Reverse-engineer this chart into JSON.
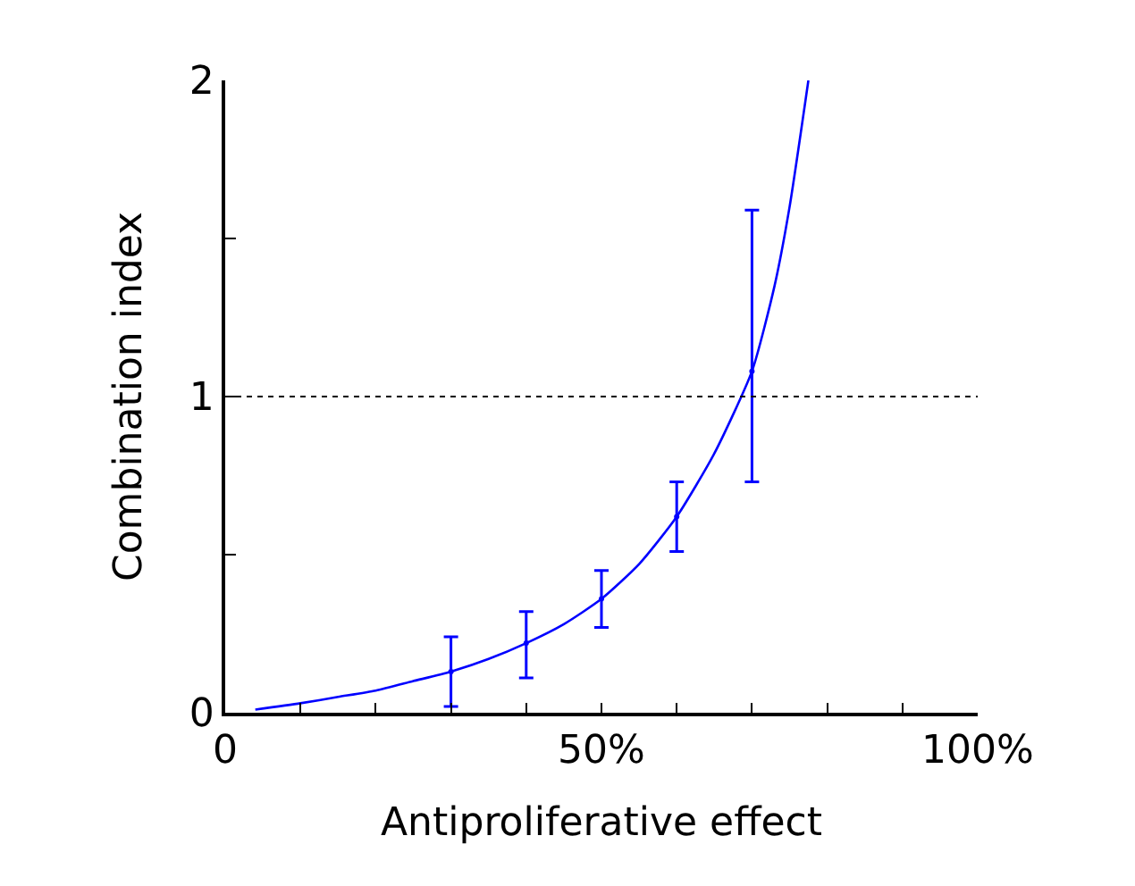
{
  "chart_data": {
    "type": "line",
    "xlabel": "Antiproliferative effect",
    "ylabel": "Combination index",
    "xlim": [
      0,
      100
    ],
    "ylim": [
      0,
      2
    ],
    "xticks": [
      0,
      {
        "value": 10,
        "label": null
      },
      {
        "value": 20,
        "label": null
      },
      {
        "value": 30,
        "label": null
      },
      {
        "value": 40,
        "label": null
      },
      {
        "value": 50,
        "label": "50%"
      },
      {
        "value": 60,
        "label": null
      },
      {
        "value": 70,
        "label": null
      },
      {
        "value": 80,
        "label": null
      },
      {
        "value": 90,
        "label": null
      },
      {
        "value": 100,
        "label": "100%"
      }
    ],
    "yticks": [
      0,
      {
        "value": 0.5,
        "label": null
      },
      1,
      {
        "value": 1.5,
        "label": null
      },
      2
    ],
    "grid": false,
    "legend": false,
    "series": [
      {
        "type": "line",
        "color": "#0000ff",
        "marker": "none",
        "line_style": "solid",
        "x": [
          4,
          10,
          15,
          20,
          25,
          30,
          35,
          40,
          45,
          50,
          55,
          60,
          65,
          70,
          73,
          75,
          77.5
        ],
        "values": [
          0.01,
          0.03,
          0.05,
          0.07,
          0.1,
          0.13,
          0.17,
          0.22,
          0.28,
          0.36,
          0.47,
          0.62,
          0.82,
          1.08,
          1.35,
          1.6,
          2.0
        ]
      },
      {
        "type": "scatter",
        "color": "#0000ff",
        "marker": "circle",
        "x": [
          30,
          40,
          50,
          60,
          70
        ],
        "values": [
          0.13,
          0.22,
          0.36,
          0.62,
          1.08
        ],
        "errors": [
          [
            0.02,
            0.24
          ],
          [
            0.11,
            0.32
          ],
          [
            0.27,
            0.45
          ],
          [
            0.51,
            0.73
          ],
          [
            0.73,
            1.59
          ]
        ]
      }
    ],
    "ref_lines": [
      {
        "axis": "y",
        "value": 1,
        "label": null,
        "color": "#000000",
        "line_style": "dotted"
      }
    ]
  }
}
